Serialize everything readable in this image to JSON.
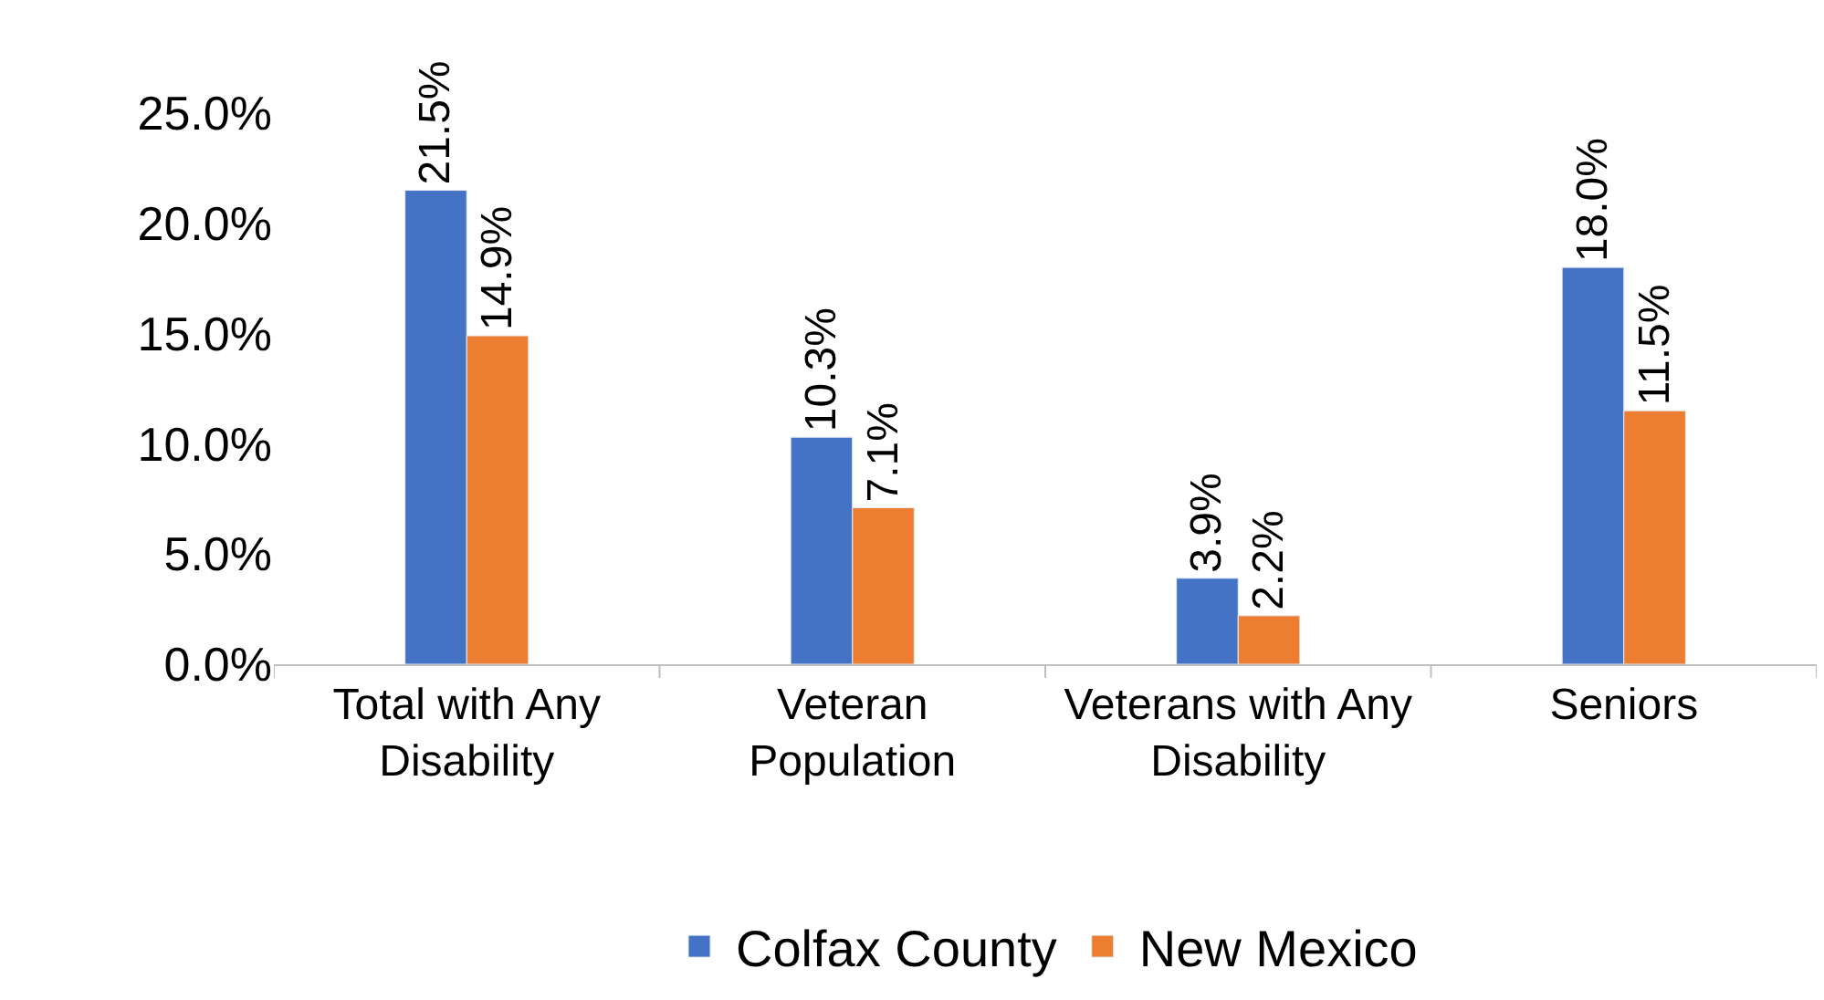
{
  "chart_data": {
    "type": "bar",
    "categories": [
      "Total with Any Disability",
      "Veteran Population",
      "Veterans with Any Disability",
      "Seniors"
    ],
    "series": [
      {
        "name": "Colfax County",
        "color": "#4472c4",
        "values": [
          21.5,
          10.3,
          3.9,
          18.0
        ],
        "value_labels": [
          "21.5%",
          "10.3%",
          "3.9%",
          "18.0%"
        ]
      },
      {
        "name": "New Mexico",
        "color": "#ed7d31",
        "values": [
          14.9,
          7.1,
          2.2,
          11.5
        ],
        "value_labels": [
          "14.9%",
          "7.1%",
          "2.2%",
          "11.5%"
        ]
      }
    ],
    "ylim": [
      0,
      25
    ],
    "yticks": [
      {
        "value": 0,
        "label": "0.0%"
      },
      {
        "value": 5,
        "label": "5.0%"
      },
      {
        "value": 10,
        "label": "10.0%"
      },
      {
        "value": 15,
        "label": "15.0%"
      },
      {
        "value": 20,
        "label": "20.0%"
      },
      {
        "value": 25,
        "label": "25.0%"
      }
    ],
    "legend": "bottom"
  }
}
